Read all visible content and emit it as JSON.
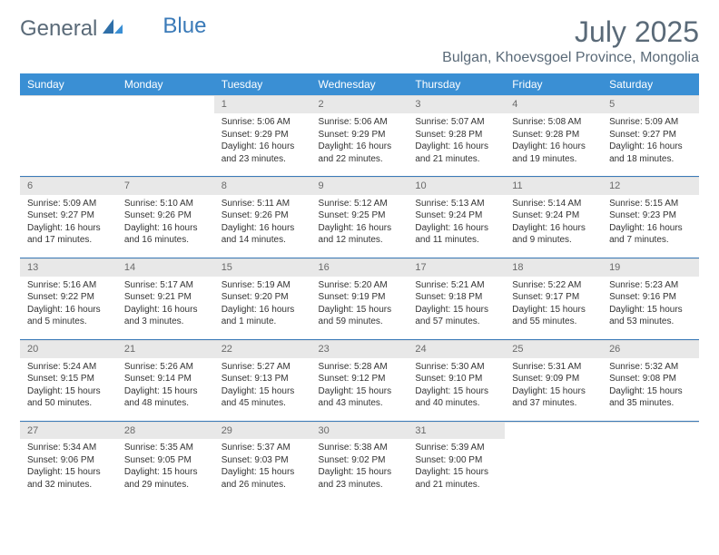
{
  "logo": {
    "general": "General",
    "blue": "Blue"
  },
  "title": {
    "month": "July 2025",
    "location": "Bulgan, Khoevsgoel Province, Mongolia"
  },
  "colors": {
    "header_bg": "#3a8fd4",
    "header_text": "#ffffff",
    "daynum_bg": "#e8e8e8",
    "daynum_text": "#6a6a6a",
    "sep_line": "#3a7ab8",
    "title_text": "#5a6a78",
    "body_text": "#333333",
    "logo_blue": "#3a7ab8"
  },
  "weekdays": [
    "Sunday",
    "Monday",
    "Tuesday",
    "Wednesday",
    "Thursday",
    "Friday",
    "Saturday"
  ],
  "weeks": [
    [
      null,
      null,
      {
        "n": "1",
        "sunrise": "Sunrise: 5:06 AM",
        "sunset": "Sunset: 9:29 PM",
        "daylight": "Daylight: 16 hours and 23 minutes."
      },
      {
        "n": "2",
        "sunrise": "Sunrise: 5:06 AM",
        "sunset": "Sunset: 9:29 PM",
        "daylight": "Daylight: 16 hours and 22 minutes."
      },
      {
        "n": "3",
        "sunrise": "Sunrise: 5:07 AM",
        "sunset": "Sunset: 9:28 PM",
        "daylight": "Daylight: 16 hours and 21 minutes."
      },
      {
        "n": "4",
        "sunrise": "Sunrise: 5:08 AM",
        "sunset": "Sunset: 9:28 PM",
        "daylight": "Daylight: 16 hours and 19 minutes."
      },
      {
        "n": "5",
        "sunrise": "Sunrise: 5:09 AM",
        "sunset": "Sunset: 9:27 PM",
        "daylight": "Daylight: 16 hours and 18 minutes."
      }
    ],
    [
      {
        "n": "6",
        "sunrise": "Sunrise: 5:09 AM",
        "sunset": "Sunset: 9:27 PM",
        "daylight": "Daylight: 16 hours and 17 minutes."
      },
      {
        "n": "7",
        "sunrise": "Sunrise: 5:10 AM",
        "sunset": "Sunset: 9:26 PM",
        "daylight": "Daylight: 16 hours and 16 minutes."
      },
      {
        "n": "8",
        "sunrise": "Sunrise: 5:11 AM",
        "sunset": "Sunset: 9:26 PM",
        "daylight": "Daylight: 16 hours and 14 minutes."
      },
      {
        "n": "9",
        "sunrise": "Sunrise: 5:12 AM",
        "sunset": "Sunset: 9:25 PM",
        "daylight": "Daylight: 16 hours and 12 minutes."
      },
      {
        "n": "10",
        "sunrise": "Sunrise: 5:13 AM",
        "sunset": "Sunset: 9:24 PM",
        "daylight": "Daylight: 16 hours and 11 minutes."
      },
      {
        "n": "11",
        "sunrise": "Sunrise: 5:14 AM",
        "sunset": "Sunset: 9:24 PM",
        "daylight": "Daylight: 16 hours and 9 minutes."
      },
      {
        "n": "12",
        "sunrise": "Sunrise: 5:15 AM",
        "sunset": "Sunset: 9:23 PM",
        "daylight": "Daylight: 16 hours and 7 minutes."
      }
    ],
    [
      {
        "n": "13",
        "sunrise": "Sunrise: 5:16 AM",
        "sunset": "Sunset: 9:22 PM",
        "daylight": "Daylight: 16 hours and 5 minutes."
      },
      {
        "n": "14",
        "sunrise": "Sunrise: 5:17 AM",
        "sunset": "Sunset: 9:21 PM",
        "daylight": "Daylight: 16 hours and 3 minutes."
      },
      {
        "n": "15",
        "sunrise": "Sunrise: 5:19 AM",
        "sunset": "Sunset: 9:20 PM",
        "daylight": "Daylight: 16 hours and 1 minute."
      },
      {
        "n": "16",
        "sunrise": "Sunrise: 5:20 AM",
        "sunset": "Sunset: 9:19 PM",
        "daylight": "Daylight: 15 hours and 59 minutes."
      },
      {
        "n": "17",
        "sunrise": "Sunrise: 5:21 AM",
        "sunset": "Sunset: 9:18 PM",
        "daylight": "Daylight: 15 hours and 57 minutes."
      },
      {
        "n": "18",
        "sunrise": "Sunrise: 5:22 AM",
        "sunset": "Sunset: 9:17 PM",
        "daylight": "Daylight: 15 hours and 55 minutes."
      },
      {
        "n": "19",
        "sunrise": "Sunrise: 5:23 AM",
        "sunset": "Sunset: 9:16 PM",
        "daylight": "Daylight: 15 hours and 53 minutes."
      }
    ],
    [
      {
        "n": "20",
        "sunrise": "Sunrise: 5:24 AM",
        "sunset": "Sunset: 9:15 PM",
        "daylight": "Daylight: 15 hours and 50 minutes."
      },
      {
        "n": "21",
        "sunrise": "Sunrise: 5:26 AM",
        "sunset": "Sunset: 9:14 PM",
        "daylight": "Daylight: 15 hours and 48 minutes."
      },
      {
        "n": "22",
        "sunrise": "Sunrise: 5:27 AM",
        "sunset": "Sunset: 9:13 PM",
        "daylight": "Daylight: 15 hours and 45 minutes."
      },
      {
        "n": "23",
        "sunrise": "Sunrise: 5:28 AM",
        "sunset": "Sunset: 9:12 PM",
        "daylight": "Daylight: 15 hours and 43 minutes."
      },
      {
        "n": "24",
        "sunrise": "Sunrise: 5:30 AM",
        "sunset": "Sunset: 9:10 PM",
        "daylight": "Daylight: 15 hours and 40 minutes."
      },
      {
        "n": "25",
        "sunrise": "Sunrise: 5:31 AM",
        "sunset": "Sunset: 9:09 PM",
        "daylight": "Daylight: 15 hours and 37 minutes."
      },
      {
        "n": "26",
        "sunrise": "Sunrise: 5:32 AM",
        "sunset": "Sunset: 9:08 PM",
        "daylight": "Daylight: 15 hours and 35 minutes."
      }
    ],
    [
      {
        "n": "27",
        "sunrise": "Sunrise: 5:34 AM",
        "sunset": "Sunset: 9:06 PM",
        "daylight": "Daylight: 15 hours and 32 minutes."
      },
      {
        "n": "28",
        "sunrise": "Sunrise: 5:35 AM",
        "sunset": "Sunset: 9:05 PM",
        "daylight": "Daylight: 15 hours and 29 minutes."
      },
      {
        "n": "29",
        "sunrise": "Sunrise: 5:37 AM",
        "sunset": "Sunset: 9:03 PM",
        "daylight": "Daylight: 15 hours and 26 minutes."
      },
      {
        "n": "30",
        "sunrise": "Sunrise: 5:38 AM",
        "sunset": "Sunset: 9:02 PM",
        "daylight": "Daylight: 15 hours and 23 minutes."
      },
      {
        "n": "31",
        "sunrise": "Sunrise: 5:39 AM",
        "sunset": "Sunset: 9:00 PM",
        "daylight": "Daylight: 15 hours and 21 minutes."
      },
      null,
      null
    ]
  ]
}
